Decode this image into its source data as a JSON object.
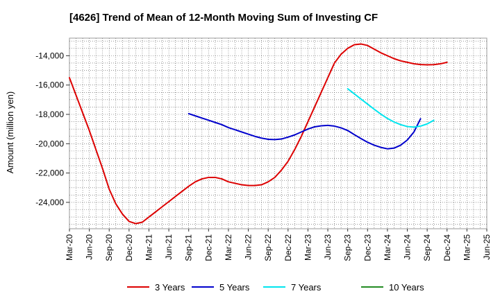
{
  "chart_data": {
    "type": "line",
    "title": "[4626]  Trend of Mean of 12-Month Moving Sum of Investing CF",
    "xlabel": "",
    "ylabel": "Amount (million yen)",
    "ylim": [
      -25800,
      -12800
    ],
    "y_ticks": [
      -14000,
      -16000,
      -18000,
      -20000,
      -22000,
      -24000
    ],
    "y_tick_labels": [
      "-14,000",
      "-16,000",
      "-18,000",
      "-20,000",
      "-22,000",
      "-24,000"
    ],
    "x_tick_labels": [
      "Mar-20",
      "Jun-20",
      "Sep-20",
      "Dec-20",
      "Mar-21",
      "Jun-21",
      "Sep-21",
      "Dec-21",
      "Mar-22",
      "Jun-22",
      "Sep-22",
      "Dec-22",
      "Mar-23",
      "Jun-23",
      "Sep-23",
      "Dec-23",
      "Mar-24",
      "Jun-24",
      "Sep-24",
      "Dec-24",
      "Mar-25",
      "Jun-25"
    ],
    "grid": true,
    "legend_position": "bottom",
    "series": [
      {
        "name": "3 Years",
        "color": "#dd0000",
        "start_index": 0,
        "values": [
          -15500,
          -16700,
          -17900,
          -19100,
          -20400,
          -21700,
          -23100,
          -24100,
          -24800,
          -25300,
          -25450,
          -25350,
          -25000,
          -24650,
          -24300,
          -23950,
          -23600,
          -23250,
          -22900,
          -22600,
          -22400,
          -22300,
          -22300,
          -22400,
          -22600,
          -22700,
          -22800,
          -22850,
          -22850,
          -22800,
          -22600,
          -22300,
          -21800,
          -21200,
          -20400,
          -19500,
          -18500,
          -17500,
          -16500,
          -15500,
          -14500,
          -13900,
          -13500,
          -13250,
          -13200,
          -13300,
          -13550,
          -13800,
          -14000,
          -14200,
          -14350,
          -14450,
          -14550,
          -14600,
          -14620,
          -14610,
          -14550,
          -14450
        ]
      },
      {
        "name": "5 Years",
        "color": "#0000cc",
        "start_index": 18,
        "values": [
          -17950,
          -18100,
          -18250,
          -18400,
          -18550,
          -18700,
          -18900,
          -19050,
          -19200,
          -19350,
          -19500,
          -19620,
          -19700,
          -19720,
          -19680,
          -19550,
          -19400,
          -19200,
          -19000,
          -18850,
          -18780,
          -18750,
          -18800,
          -18920,
          -19100,
          -19380,
          -19650,
          -19900,
          -20100,
          -20250,
          -20350,
          -20300,
          -20100,
          -19750,
          -19200,
          -18300
        ]
      },
      {
        "name": "7 Years",
        "color": "#00e5ee",
        "start_index": 42,
        "values": [
          -16250,
          -16600,
          -16950,
          -17300,
          -17650,
          -17980,
          -18280,
          -18520,
          -18700,
          -18830,
          -18870,
          -18800,
          -18650,
          -18400
        ]
      },
      {
        "name": "10 Years",
        "color": "#228b22",
        "start_index": 0,
        "values": []
      }
    ]
  }
}
